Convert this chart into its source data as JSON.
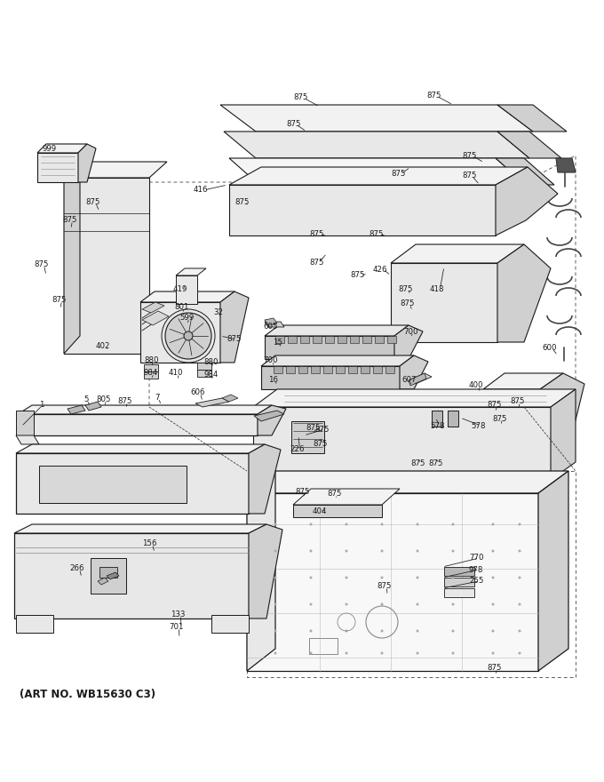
{
  "bg_color": "#ffffff",
  "art_no": "(ART NO. WB15630 C3)",
  "line_color": "#1a1a1a",
  "gray1": "#e8e8e8",
  "gray2": "#d0d0d0",
  "gray3": "#b8b8b8",
  "gray4": "#f2f2f2"
}
